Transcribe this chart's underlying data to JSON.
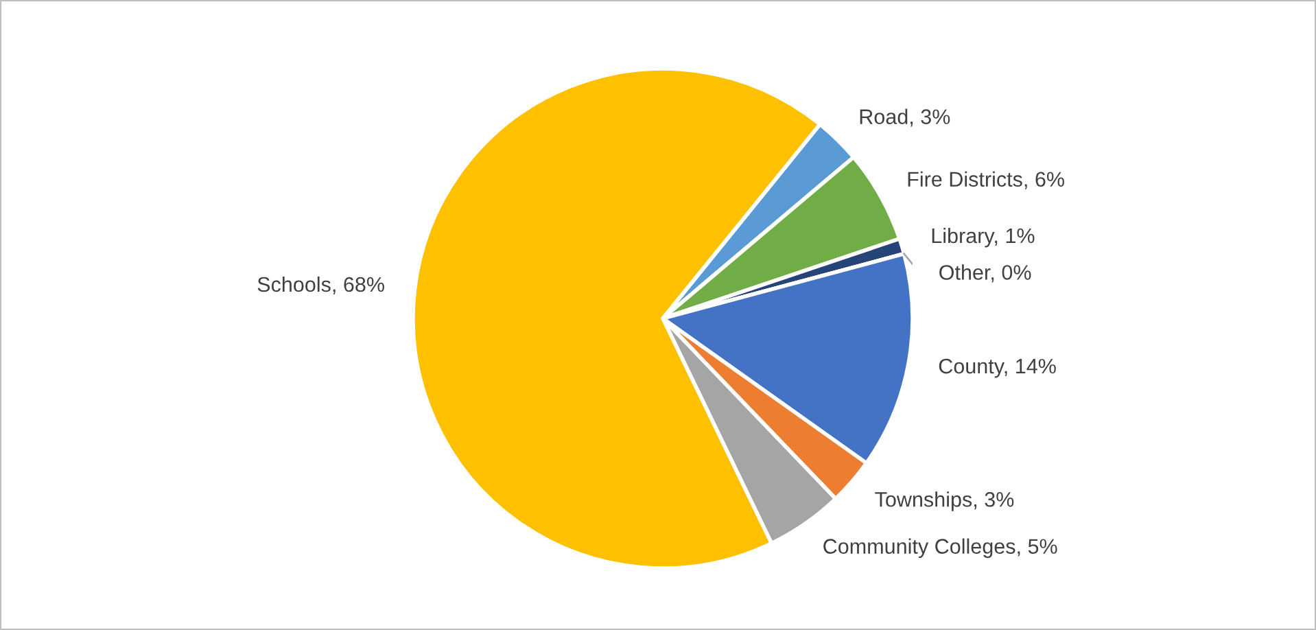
{
  "chart_data": {
    "type": "pie",
    "categories": [
      "Road",
      "Fire Districts",
      "Library",
      "Other",
      "County",
      "Townships",
      "Community Colleges",
      "Schools"
    ],
    "values": [
      3,
      6,
      1,
      0,
      14,
      3,
      5,
      68
    ],
    "value_labels": [
      "3%",
      "6%",
      "1%",
      "0%",
      "14%",
      "3%",
      "5%",
      "68%"
    ],
    "colors": [
      "#5b9bd5",
      "#70ad47",
      "#264478",
      "#9e480e",
      "#4472c4",
      "#ed7d31",
      "#a5a5a5",
      "#ffc000"
    ]
  }
}
